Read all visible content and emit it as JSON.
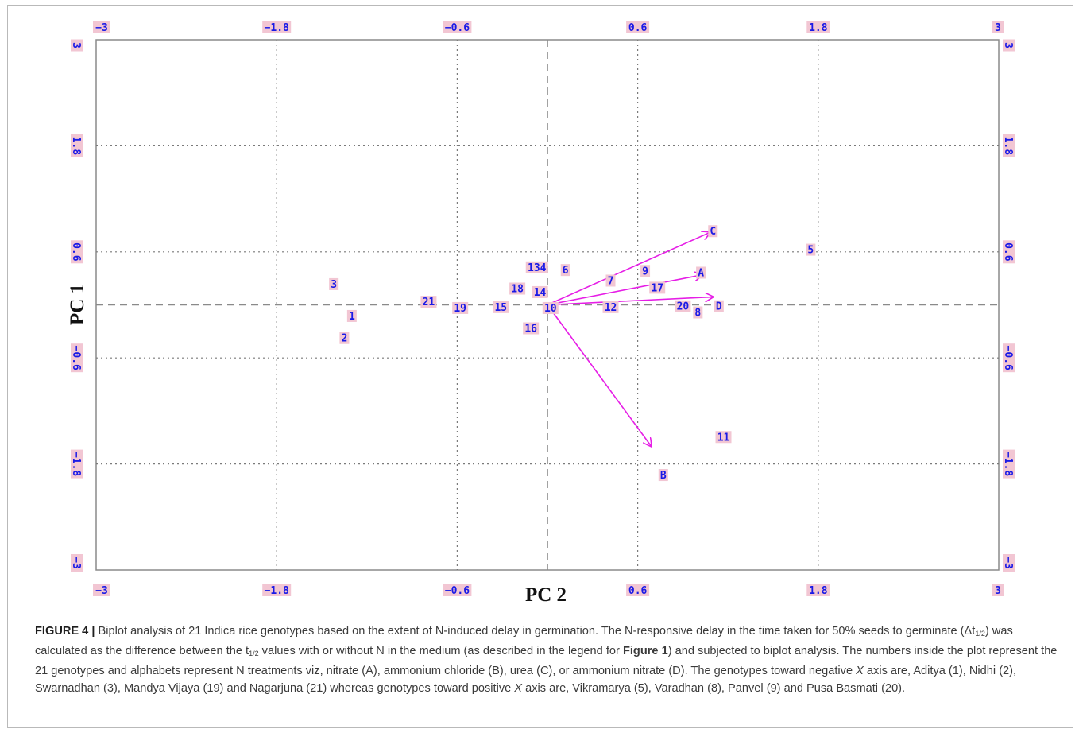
{
  "chart_data": {
    "type": "scatter",
    "subtype": "biplot",
    "xlabel": "PC 2",
    "ylabel": "PC 1",
    "xlim": [
      -3,
      3
    ],
    "ylim": [
      -3,
      3
    ],
    "x_ticks": [
      "−3",
      "−1.8",
      "−0.6",
      "0.6",
      "1.8",
      "3"
    ],
    "y_ticks": [
      "3",
      "1.8",
      "0.6",
      "−0.6",
      "−1.8",
      "−3"
    ],
    "x_tick_values": [
      -3,
      -1.8,
      -0.6,
      0.6,
      1.8,
      3
    ],
    "y_tick_values": [
      3,
      1.8,
      0.6,
      -0.6,
      -1.8,
      -3
    ],
    "grid": true,
    "genotypes": [
      {
        "label": "1",
        "x": -1.3,
        "y": -0.13
      },
      {
        "label": "2",
        "x": -1.35,
        "y": -0.38
      },
      {
        "label": "3",
        "x": -1.42,
        "y": 0.23
      },
      {
        "label": "5",
        "x": 1.75,
        "y": 0.62
      },
      {
        "label": "6",
        "x": 0.12,
        "y": 0.39
      },
      {
        "label": "7",
        "x": 0.42,
        "y": 0.27
      },
      {
        "label": "8",
        "x": 1.0,
        "y": -0.09
      },
      {
        "label": "9",
        "x": 0.65,
        "y": 0.38
      },
      {
        "label": "10",
        "x": 0.02,
        "y": -0.04
      },
      {
        "label": "11",
        "x": 1.17,
        "y": -1.5
      },
      {
        "label": "12",
        "x": 0.42,
        "y": -0.03
      },
      {
        "label": "134",
        "x": -0.07,
        "y": 0.42
      },
      {
        "label": "14",
        "x": -0.05,
        "y": 0.14
      },
      {
        "label": "15",
        "x": -0.31,
        "y": -0.03
      },
      {
        "label": "16",
        "x": -0.11,
        "y": -0.27
      },
      {
        "label": "17",
        "x": 0.73,
        "y": 0.19
      },
      {
        "label": "18",
        "x": -0.2,
        "y": 0.18
      },
      {
        "label": "19",
        "x": -0.58,
        "y": -0.04
      },
      {
        "label": "20",
        "x": 0.9,
        "y": -0.02
      },
      {
        "label": "21",
        "x": -0.79,
        "y": 0.03
      }
    ],
    "treatments": [
      {
        "label": "A",
        "x": 1.02,
        "y": 0.36
      },
      {
        "label": "B",
        "x": 0.77,
        "y": -1.93
      },
      {
        "label": "C",
        "x": 1.1,
        "y": 0.83
      },
      {
        "label": "D",
        "x": 1.14,
        "y": -0.02
      }
    ],
    "vectors": [
      {
        "name": "A",
        "x": 1.03,
        "y": 0.34
      },
      {
        "name": "B",
        "x": 0.69,
        "y": -1.6
      },
      {
        "name": "C",
        "x": 1.08,
        "y": 0.82
      },
      {
        "name": "D",
        "x": 1.1,
        "y": 0.09
      }
    ],
    "colors": {
      "point": "#1a1ae6",
      "label_bg": "#f2c6d3",
      "vector": "#e61ee6",
      "axis": "#8a8a8a"
    }
  },
  "caption": {
    "label": "FIGURE 4 |",
    "p1": "Biplot analysis of 21 Indica rice genotypes based on the extent of N-induced delay in germination. The N-responsive delay in the time taken for 50% seeds to germinate (",
    "delta_t": "Δt",
    "sub1": "1/2",
    "p2": ") was calculated as the difference between the t",
    "sub2": "1/2",
    "p3": " values with or without N in the medium (as described in the legend for ",
    "fig_ref": "Figure 1",
    "p4": ") and subjected to biplot analysis. The numbers inside the plot represent the 21 genotypes and alphabets represent N treatments viz, nitrate (A), ammonium chloride (B), urea (C), or ammonium nitrate (D). The genotypes toward negative ",
    "x_italic": "X",
    "p5": " axis are, Aditya (1), Nidhi (2), Swarnadhan (3), Mandya Vijaya (19) and Nagarjuna (21) whereas genotypes toward positive ",
    "x_italic2": "X",
    "p6": " axis are, Vikramarya (5), Varadhan (8), Panvel (9) and Pusa Basmati (20)."
  }
}
